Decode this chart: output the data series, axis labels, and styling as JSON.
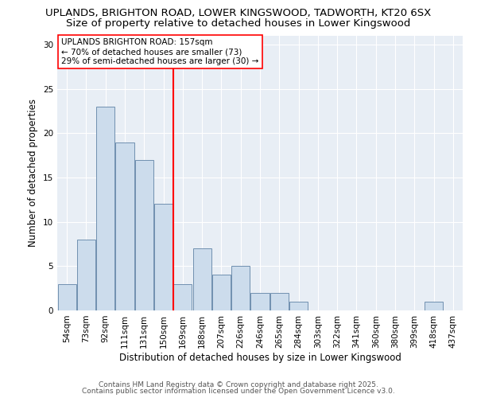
{
  "title1": "UPLANDS, BRIGHTON ROAD, LOWER KINGSWOOD, TADWORTH, KT20 6SX",
  "title2": "Size of property relative to detached houses in Lower Kingswood",
  "xlabel": "Distribution of detached houses by size in Lower Kingswood",
  "ylabel": "Number of detached properties",
  "bin_labels": [
    "54sqm",
    "73sqm",
    "92sqm",
    "111sqm",
    "131sqm",
    "150sqm",
    "169sqm",
    "188sqm",
    "207sqm",
    "226sqm",
    "246sqm",
    "265sqm",
    "284sqm",
    "303sqm",
    "322sqm",
    "341sqm",
    "360sqm",
    "380sqm",
    "399sqm",
    "418sqm",
    "437sqm"
  ],
  "bar_values": [
    3,
    8,
    23,
    19,
    17,
    12,
    3,
    7,
    4,
    5,
    2,
    2,
    1,
    0,
    0,
    0,
    0,
    0,
    0,
    1,
    0
  ],
  "bar_color": "#ccdcec",
  "bar_edge_color": "#7090b0",
  "vline_color": "red",
  "vline_label": "UPLANDS BRIGHTON ROAD: 157sqm",
  "annotation_line2": "← 70% of detached houses are smaller (73)",
  "annotation_line3": "29% of semi-detached houses are larger (30) →",
  "ylim": [
    0,
    31
  ],
  "yticks": [
    0,
    5,
    10,
    15,
    20,
    25,
    30
  ],
  "background_color": "#e8eef5",
  "footer1": "Contains HM Land Registry data © Crown copyright and database right 2025.",
  "footer2": "Contains public sector information licensed under the Open Government Licence v3.0.",
  "title_fontsize": 9.5,
  "subtitle_fontsize": 9.5,
  "axis_fontsize": 8.5,
  "tick_fontsize": 7.5,
  "footer_fontsize": 6.5,
  "annotation_fontsize": 7.5
}
